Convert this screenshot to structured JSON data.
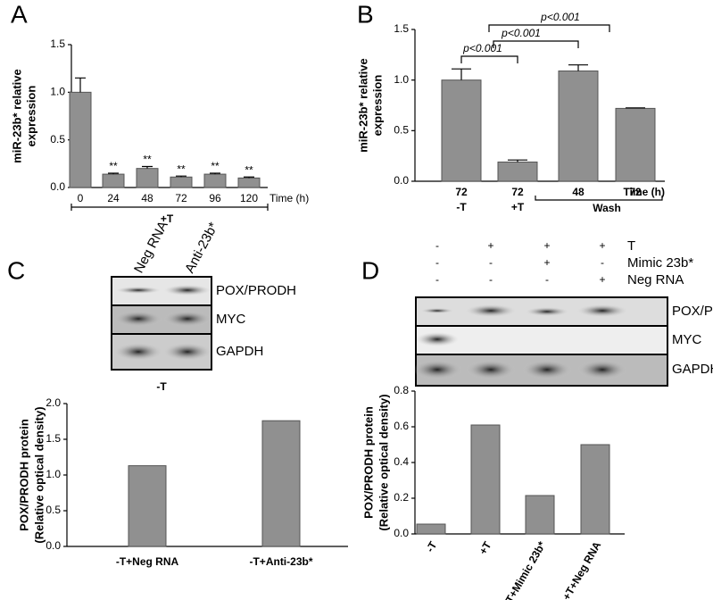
{
  "chart_data": [
    {
      "type": "bar",
      "panel": "A",
      "ylabel": [
        "miR-23b* relative",
        "expression"
      ],
      "categories": [
        "0",
        "24",
        "48",
        "72",
        "96",
        "120"
      ],
      "values": [
        1.0,
        0.14,
        0.2,
        0.11,
        0.14,
        0.1
      ],
      "errors": [
        0.15,
        0.01,
        0.02,
        0.01,
        0.01,
        0.01
      ],
      "bar_labels": [
        null,
        "**",
        "**",
        "**",
        "**",
        "**"
      ],
      "xlabel": "Time (h)",
      "group": "+T",
      "color": "#909090",
      "ylim": [
        0,
        1.5
      ],
      "yticks": [
        {
          "value": 0,
          "label": "0.0"
        },
        {
          "value": 0.5,
          "label": "0.5"
        },
        {
          "value": 1,
          "label": "1.0"
        },
        {
          "value": 1.5,
          "label": "1.5"
        }
      ]
    },
    {
      "type": "bar",
      "panel": "B",
      "ylabel": [
        "miR-23b* relative",
        "expression"
      ],
      "categories": [
        "72",
        "72",
        "48",
        "72"
      ],
      "sublabels": [
        "-T",
        "+T"
      ],
      "group": "Wash",
      "values": [
        1.0,
        0.19,
        1.09,
        0.72
      ],
      "errors": [
        0.11,
        0.02,
        0.06,
        0.005
      ],
      "annotations": [
        "p<0.001",
        "p<0.001",
        "p<0.001"
      ],
      "xlabel": "Time (h)",
      "color": "#909090",
      "ylim": [
        0,
        1.5
      ],
      "yticks": [
        {
          "value": 0,
          "label": "0.0"
        },
        {
          "value": 0.5,
          "label": "0.5"
        },
        {
          "value": 1,
          "label": "1.0"
        },
        {
          "value": 1.5,
          "label": "1.5"
        }
      ]
    },
    {
      "type": "bar",
      "panel": "C",
      "ylabel": [
        "POX/PRODH protein",
        "(Relative optical density)"
      ],
      "blot": {
        "lanes": [
          "Neg RNA",
          "Anti-23b*"
        ],
        "rows": [
          "POX/PRODH",
          "MYC",
          "GAPDH"
        ],
        "condition": "-T"
      },
      "categories": [
        "-T+Neg RNA",
        "-T+Anti-23b*"
      ],
      "values": [
        1.13,
        1.76
      ],
      "color": "#909090",
      "ylim": [
        0,
        2
      ],
      "yticks": [
        {
          "value": 0,
          "label": "0.0"
        },
        {
          "value": 0.5,
          "label": "0.5"
        },
        {
          "value": 1,
          "label": "1.0"
        },
        {
          "value": 1.5,
          "label": "1.5"
        },
        {
          "value": 2,
          "label": "2.0"
        }
      ]
    },
    {
      "type": "bar",
      "panel": "D",
      "ylabel": [
        "POX/PRODH protein",
        "(Relative optical density)"
      ],
      "conditions": [
        {
          "name": "T",
          "signs": [
            "-",
            "+",
            "+",
            "+"
          ]
        },
        {
          "name": "Mimic 23b*",
          "signs": [
            "-",
            "-",
            "+",
            "-"
          ]
        },
        {
          "name": "Neg RNA",
          "signs": [
            "-",
            "-",
            "-",
            "+"
          ]
        }
      ],
      "blot": {
        "rows": [
          "POX/PRODH",
          "MYC",
          "GAPDH"
        ]
      },
      "categories": [
        "-T",
        "+T",
        "+T+Mimic 23b*",
        "+T+Neg RNA"
      ],
      "values": [
        0.055,
        0.61,
        0.215,
        0.5
      ],
      "color": "#909090",
      "ylim": [
        0,
        0.8
      ],
      "yticks": [
        {
          "value": 0,
          "label": "0.0"
        },
        {
          "value": 0.2,
          "label": "0.2"
        },
        {
          "value": 0.4,
          "label": "0.4"
        },
        {
          "value": 0.6,
          "label": "0.6"
        },
        {
          "value": 0.8,
          "label": "0.8"
        }
      ]
    }
  ]
}
